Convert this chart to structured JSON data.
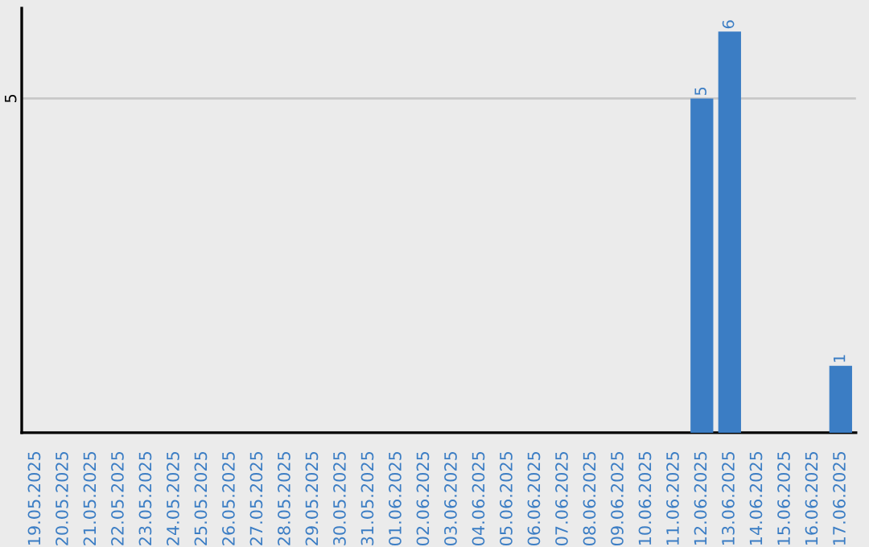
{
  "chart_data": {
    "type": "bar",
    "categories": [
      "19.05.2025",
      "20.05.2025",
      "21.05.2025",
      "22.05.2025",
      "23.05.2025",
      "24.05.2025",
      "25.05.2025",
      "26.05.2025",
      "27.05.2025",
      "28.05.2025",
      "29.05.2025",
      "30.05.2025",
      "31.05.2025",
      "01.06.2025",
      "02.06.2025",
      "03.06.2025",
      "04.06.2025",
      "05.06.2025",
      "06.06.2025",
      "07.06.2025",
      "08.06.2025",
      "09.06.2025",
      "10.06.2025",
      "11.06.2025",
      "12.06.2025",
      "13.06.2025",
      "14.06.2025",
      "15.06.2025",
      "16.06.2025",
      "17.06.2025"
    ],
    "series": [
      {
        "color": "#3b7dc4",
        "values": [
          null,
          null,
          null,
          null,
          null,
          null,
          null,
          null,
          null,
          null,
          null,
          null,
          null,
          null,
          null,
          null,
          null,
          null,
          null,
          null,
          null,
          null,
          null,
          null,
          5,
          6,
          null,
          null,
          null,
          1
        ]
      }
    ],
    "data_labels": true,
    "ylim": [
      0,
      6.35
    ],
    "yticks": [
      5
    ],
    "grid": "y",
    "legend": false
  }
}
